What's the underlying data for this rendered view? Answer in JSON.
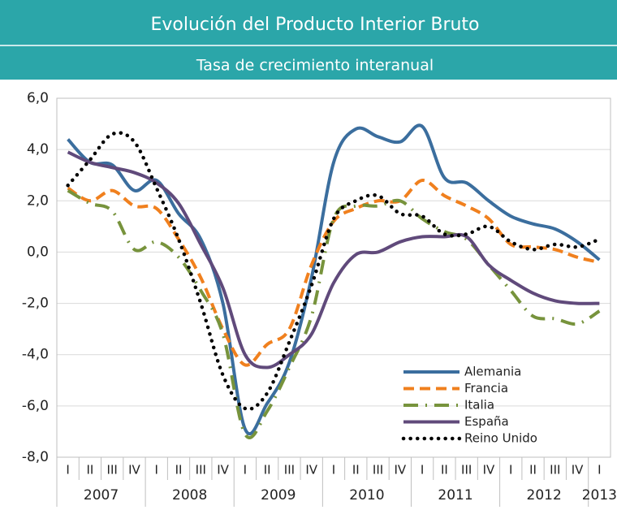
{
  "chart_data": {
    "type": "line",
    "title": "Evolución del Producto Interior Bruto",
    "subtitle": "Tasa de crecimiento interanual",
    "categories": [
      "I",
      "II",
      "III",
      "IV",
      "I",
      "II",
      "III",
      "IV",
      "I",
      "II",
      "III",
      "IV",
      "I",
      "II",
      "III",
      "IV",
      "I",
      "II",
      "III",
      "IV",
      "I",
      "II",
      "III",
      "IV",
      "I"
    ],
    "year_labels": [
      "2007",
      "2008",
      "2009",
      "2010",
      "2011",
      "2012",
      "2013"
    ],
    "ylim": [
      -8,
      6
    ],
    "yticks": [
      {
        "value": -8,
        "label": "-8,0"
      },
      {
        "value": -6,
        "label": "-6,0"
      },
      {
        "value": -4,
        "label": "-4,0"
      },
      {
        "value": -2,
        "label": "-2,0"
      },
      {
        "value": 0,
        "label": "0,0"
      },
      {
        "value": 2,
        "label": "2,0"
      },
      {
        "value": 4,
        "label": "4,0"
      },
      {
        "value": 6,
        "label": "6,0"
      }
    ],
    "grid": true,
    "legend": "lower right",
    "series": [
      {
        "name": "Alemania",
        "color": "#3b6e9e",
        "style": "solid",
        "values": [
          4.4,
          3.5,
          3.4,
          2.4,
          2.8,
          1.5,
          0.5,
          -2.0,
          -6.9,
          -5.9,
          -4.3,
          -1.0,
          3.5,
          4.8,
          4.5,
          4.3,
          4.9,
          2.9,
          2.7,
          2.0,
          1.4,
          1.1,
          0.9,
          0.4,
          -0.3
        ]
      },
      {
        "name": "Francia",
        "color": "#f0801e",
        "style": "dashed",
        "values": [
          2.5,
          2.0,
          2.4,
          1.8,
          1.7,
          0.5,
          -1.0,
          -3.0,
          -4.4,
          -3.6,
          -3.0,
          -0.5,
          1.2,
          1.7,
          2.0,
          2.0,
          2.8,
          2.2,
          1.8,
          1.3,
          0.3,
          0.2,
          0.1,
          -0.2,
          -0.4
        ]
      },
      {
        "name": "Italia",
        "color": "#77933c",
        "style": "dashdot",
        "values": [
          2.4,
          1.9,
          1.6,
          0.1,
          0.4,
          -0.2,
          -1.5,
          -3.2,
          -7.1,
          -6.2,
          -4.5,
          -2.5,
          1.3,
          1.8,
          1.8,
          2.0,
          1.3,
          0.8,
          0.5,
          -0.5,
          -1.5,
          -2.5,
          -2.6,
          -2.8,
          -2.3
        ]
      },
      {
        "name": "España",
        "color": "#604a7b",
        "style": "solid",
        "values": [
          3.9,
          3.5,
          3.3,
          3.1,
          2.7,
          1.9,
          0.3,
          -1.4,
          -4.0,
          -4.5,
          -4.0,
          -3.2,
          -1.2,
          -0.1,
          0.0,
          0.4,
          0.6,
          0.6,
          0.6,
          -0.5,
          -1.1,
          -1.6,
          -1.9,
          -2.0,
          -2.0
        ]
      },
      {
        "name": "Reino Unido",
        "color": "#000000",
        "style": "dotted",
        "values": [
          2.6,
          3.6,
          4.6,
          4.3,
          2.5,
          0.5,
          -2.0,
          -4.8,
          -6.1,
          -5.5,
          -3.5,
          -1.3,
          1.3,
          2.0,
          2.2,
          1.5,
          1.4,
          0.7,
          0.7,
          1.0,
          0.4,
          0.1,
          0.3,
          0.2,
          0.5
        ]
      }
    ]
  }
}
